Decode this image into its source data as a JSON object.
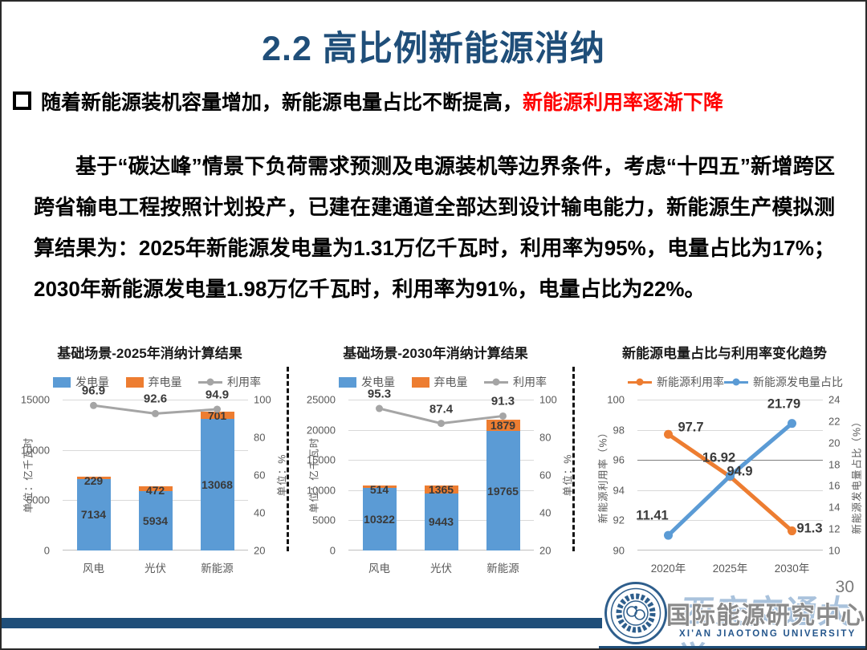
{
  "slide": {
    "title": "2.2 高比例新能源消纳",
    "bullet": {
      "prefix_black": "随着新能源装机容量增加，新能源电量占比不断提高，",
      "highlight_red": "新能源利用率逐渐下降"
    },
    "paragraph": "基于“碳达峰”情景下负荷需求预测及电源装机等边界条件，考虑“十四五”新增跨区跨省输电工程按照计划投产，已建在建通道全部达到设计输电能力，新能源生产模拟测算结果为：2025年新能源发电量为1.31万亿千瓦时，利用率为95%，电量占比为17%；2030年新能源发电量1.98万亿千瓦时，利用率为91%，电量占比为22%。",
    "page_number": "30",
    "footer": {
      "center_name": "国际能源研究中心",
      "university_zh": "西安交通大学",
      "university_en": "XI'AN JIAOTONG UNIVERSITY"
    }
  },
  "colors": {
    "accent_navy": "#1F4E79",
    "highlight_red": "#FF0000",
    "bar_blue": "#5B9BD5",
    "bar_orange": "#ED7D31",
    "line_gray": "#A5A5A5"
  },
  "chart_data": [
    {
      "type": "bar",
      "title": "基础场景-2025年消纳计算结果",
      "categories": [
        "风电",
        "光伏",
        "新能源"
      ],
      "stacked": true,
      "legend_position": "top",
      "grid": "horizontal",
      "series": [
        {
          "name": "发电量",
          "kind": "bar",
          "color": "#5B9BD5",
          "axis": "left",
          "values": [
            7134,
            5934,
            13068
          ]
        },
        {
          "name": "弃电量",
          "kind": "bar",
          "color": "#ED7D31",
          "axis": "left",
          "values": [
            229,
            472,
            701
          ]
        },
        {
          "name": "利用率",
          "kind": "line",
          "color": "#A5A5A5",
          "axis": "right",
          "values": [
            96.9,
            92.6,
            94.9
          ]
        }
      ],
      "left_axis": {
        "label": "单位：亿千瓦时",
        "min": 0,
        "max": 15000,
        "ticks": [
          0,
          5000,
          10000,
          15000
        ]
      },
      "right_axis": {
        "label": "单位：%",
        "min": 20,
        "max": 100,
        "ticks": [
          20,
          40,
          60,
          80,
          100
        ]
      }
    },
    {
      "type": "bar",
      "title": "基础场景-2030年消纳计算结果",
      "categories": [
        "风电",
        "光伏",
        "新能源"
      ],
      "stacked": true,
      "legend_position": "top",
      "grid": "horizontal",
      "series": [
        {
          "name": "发电量",
          "kind": "bar",
          "color": "#5B9BD5",
          "axis": "left",
          "values": [
            10322,
            9443,
            19765
          ]
        },
        {
          "name": "弃电量",
          "kind": "bar",
          "color": "#ED7D31",
          "axis": "left",
          "values": [
            514,
            1365,
            1879
          ]
        },
        {
          "name": "利用率",
          "kind": "line",
          "color": "#A5A5A5",
          "axis": "right",
          "values": [
            95.3,
            87.4,
            91.3
          ]
        }
      ],
      "left_axis": {
        "label": "单位：亿千瓦时",
        "min": 0,
        "max": 25000,
        "ticks": [
          0,
          5000,
          10000,
          15000,
          20000,
          25000
        ]
      },
      "right_axis": {
        "label": "单位：%",
        "min": 20,
        "max": 100,
        "ticks": [
          20,
          40,
          60,
          80,
          100
        ]
      }
    },
    {
      "type": "line",
      "title": "新能源电量占比与利用率变化趋势",
      "categories": [
        "2020年",
        "2025年",
        "2030年"
      ],
      "legend_position": "top",
      "grid": "horizontal",
      "series": [
        {
          "name": "新能源利用率",
          "kind": "line",
          "color": "#ED7D31",
          "axis": "left",
          "values": [
            97.7,
            94.9,
            91.3
          ]
        },
        {
          "name": "新能源发电量占比",
          "kind": "line",
          "color": "#5B9BD5",
          "axis": "right",
          "values": [
            11.41,
            16.92,
            21.79
          ]
        }
      ],
      "left_axis": {
        "label": "新能源利用率（%）",
        "min": 90,
        "max": 100,
        "ticks": [
          90,
          92,
          94,
          96,
          98,
          100
        ]
      },
      "right_axis": {
        "label": "新能源发电量占比（%）",
        "min": 10,
        "max": 24,
        "ticks": [
          10,
          12,
          14,
          16,
          18,
          20,
          22,
          24
        ]
      }
    }
  ]
}
